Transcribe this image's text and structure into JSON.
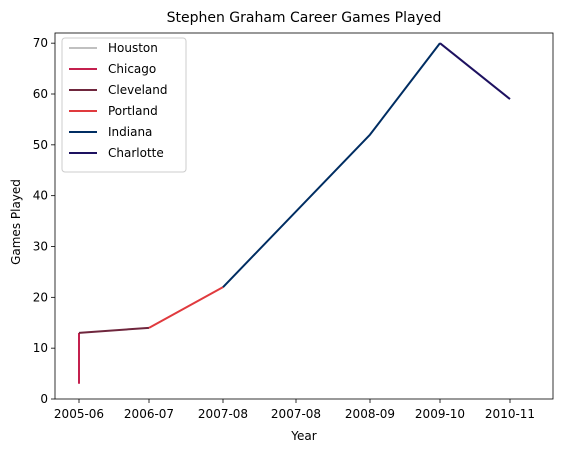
{
  "chart_data": {
    "type": "line",
    "title": "Stephen Graham  Career Games Played",
    "xlabel": "Year",
    "ylabel": "Games Played",
    "ylim": [
      0,
      72
    ],
    "yticks": [
      0,
      10,
      20,
      30,
      40,
      50,
      60,
      70
    ],
    "categories": [
      "2005-06",
      "2006-07",
      "2007-08",
      "2007-08",
      "2008-09",
      "2009-10",
      "2010-11"
    ],
    "grid": false,
    "legend_position": "top-left",
    "series": [
      {
        "name": "Houston",
        "color": "#c0c0c0",
        "points": [
          [
            0,
            3
          ],
          [
            0,
            3
          ]
        ]
      },
      {
        "name": "Chicago",
        "color": "#c4204e",
        "points": [
          [
            0,
            3
          ],
          [
            0,
            13
          ]
        ]
      },
      {
        "name": "Cleveland",
        "color": "#6f263d",
        "points": [
          [
            0,
            13
          ],
          [
            1,
            14
          ]
        ]
      },
      {
        "name": "Portland",
        "color": "#e03a3e",
        "points": [
          [
            1,
            14
          ],
          [
            2,
            22
          ]
        ]
      },
      {
        "name": "Indiana",
        "color": "#002d62",
        "points": [
          [
            2,
            22
          ],
          [
            3,
            52
          ],
          [
            4,
            70
          ]
        ]
      },
      {
        "name": "Charlotte",
        "color": "#1d1160",
        "points": [
          [
            4,
            70
          ],
          [
            5,
            59
          ]
        ]
      }
    ]
  }
}
